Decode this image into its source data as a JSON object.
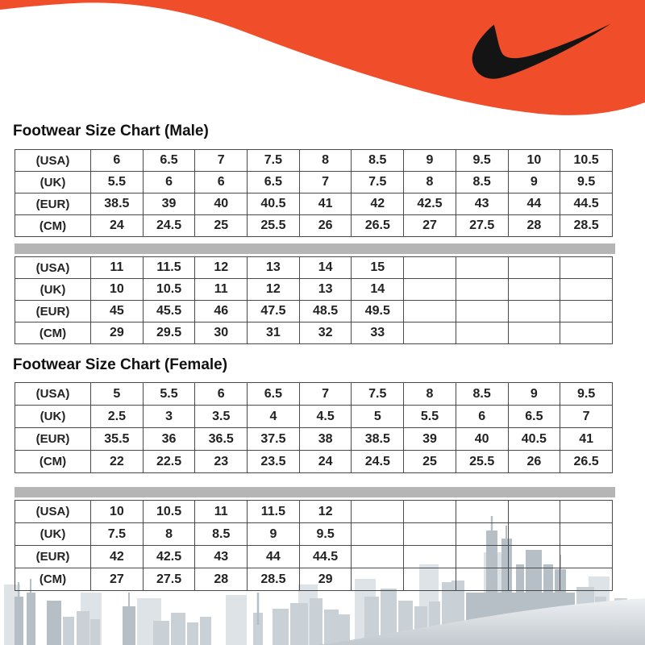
{
  "header": {
    "logo_icon": "nike-swoosh-icon",
    "wave_color": "#F04E2B",
    "logo_color": "#141414"
  },
  "colors": {
    "accent": "#F04E2B",
    "separator_bar": "#B5B5B5",
    "table_border": "#4A4A4A",
    "text": "#222222",
    "skyline_back": "#dde3e7",
    "skyline_mid": "#c9d1d6",
    "skyline_front": "#b6bfc6"
  },
  "sections": [
    {
      "id": "male",
      "title": "Footwear Size Chart (Male)",
      "tables": [
        {
          "rows": [
            {
              "label": "(USA)",
              "values": [
                "6",
                "6.5",
                "7",
                "7.5",
                "8",
                "8.5",
                "9",
                "9.5",
                "10",
                "10.5"
              ]
            },
            {
              "label": "(UK)",
              "values": [
                "5.5",
                "6",
                "6",
                "6.5",
                "7",
                "7.5",
                "8",
                "8.5",
                "9",
                "9.5"
              ]
            },
            {
              "label": "(EUR)",
              "values": [
                "38.5",
                "39",
                "40",
                "40.5",
                "41",
                "42",
                "42.5",
                "43",
                "44",
                "44.5"
              ]
            },
            {
              "label": "(CM)",
              "values": [
                "24",
                "24.5",
                "25",
                "25.5",
                "26",
                "26.5",
                "27",
                "27.5",
                "28",
                "28.5"
              ]
            }
          ]
        },
        {
          "rows": [
            {
              "label": "(USA)",
              "values": [
                "11",
                "11.5",
                "12",
                "13",
                "14",
                "15",
                "",
                "",
                "",
                ""
              ]
            },
            {
              "label": "(UK)",
              "values": [
                "10",
                "10.5",
                "11",
                "12",
                "13",
                "14",
                "",
                "",
                "",
                ""
              ]
            },
            {
              "label": "(EUR)",
              "values": [
                "45",
                "45.5",
                "46",
                "47.5",
                "48.5",
                "49.5",
                "",
                "",
                "",
                ""
              ]
            },
            {
              "label": "(CM)",
              "values": [
                "29",
                "29.5",
                "30",
                "31",
                "32",
                "33",
                "",
                "",
                "",
                ""
              ]
            }
          ]
        }
      ]
    },
    {
      "id": "female",
      "title": "Footwear Size Chart (Female)",
      "tables": [
        {
          "rows": [
            {
              "label": "(USA)",
              "values": [
                "5",
                "5.5",
                "6",
                "6.5",
                "7",
                "7.5",
                "8",
                "8.5",
                "9",
                "9.5"
              ]
            },
            {
              "label": "(UK)",
              "values": [
                "2.5",
                "3",
                "3.5",
                "4",
                "4.5",
                "5",
                "5.5",
                "6",
                "6.5",
                "7"
              ]
            },
            {
              "label": "(EUR)",
              "values": [
                "35.5",
                "36",
                "36.5",
                "37.5",
                "38",
                "38.5",
                "39",
                "40",
                "40.5",
                "41"
              ]
            },
            {
              "label": "(CM)",
              "values": [
                "22",
                "22.5",
                "23",
                "23.5",
                "24",
                "24.5",
                "25",
                "25.5",
                "26",
                "26.5"
              ]
            }
          ]
        },
        {
          "rows": [
            {
              "label": "(USA)",
              "values": [
                "10",
                "10.5",
                "11",
                "11.5",
                "12",
                "",
                "",
                "",
                "",
                ""
              ]
            },
            {
              "label": "(UK)",
              "values": [
                "7.5",
                "8",
                "8.5",
                "9",
                "9.5",
                "",
                "",
                "",
                "",
                ""
              ]
            },
            {
              "label": "(EUR)",
              "values": [
                "42",
                "42.5",
                "43",
                "44",
                "44.5",
                "",
                "",
                "",
                "",
                ""
              ]
            },
            {
              "label": "(CM)",
              "values": [
                "27",
                "27.5",
                "28",
                "28.5",
                "29",
                "",
                "",
                "",
                "",
                ""
              ]
            }
          ]
        }
      ]
    }
  ]
}
